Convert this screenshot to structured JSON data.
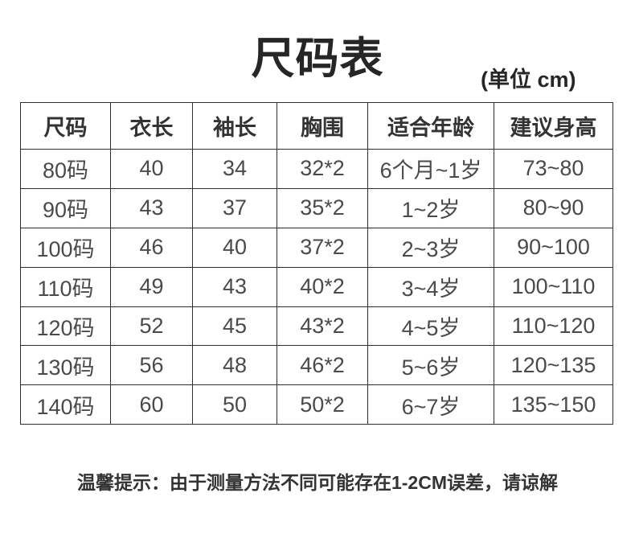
{
  "page": {
    "title": "尺码表",
    "unit_label": "(单位 cm)",
    "note": "温馨提示：由于测量方法不同可能存在1-2CM误差，请谅解"
  },
  "table": {
    "headers": [
      "尺码",
      "衣长",
      "袖长",
      "胸围",
      "适合年龄",
      "建议身高"
    ],
    "rows": [
      [
        "80码",
        "40",
        "34",
        "32*2",
        "6个月~1岁",
        "73~80"
      ],
      [
        "90码",
        "43",
        "37",
        "35*2",
        "1~2岁",
        "80~90"
      ],
      [
        "100码",
        "46",
        "40",
        "37*2",
        "2~3岁",
        "90~100"
      ],
      [
        "110码",
        "49",
        "43",
        "40*2",
        "3~4岁",
        "100~110"
      ],
      [
        "120码",
        "52",
        "45",
        "43*2",
        "4~5岁",
        "110~120"
      ],
      [
        "130码",
        "56",
        "48",
        "46*2",
        "5~6岁",
        "120~135"
      ],
      [
        "140码",
        "60",
        "50",
        "50*2",
        "6~7岁",
        "135~150"
      ]
    ]
  },
  "colors": {
    "title_text": "#262626",
    "cell_text": "#4a4a4a",
    "header_text": "#333333",
    "border": "#2e2e2e",
    "background": "#ffffff"
  }
}
